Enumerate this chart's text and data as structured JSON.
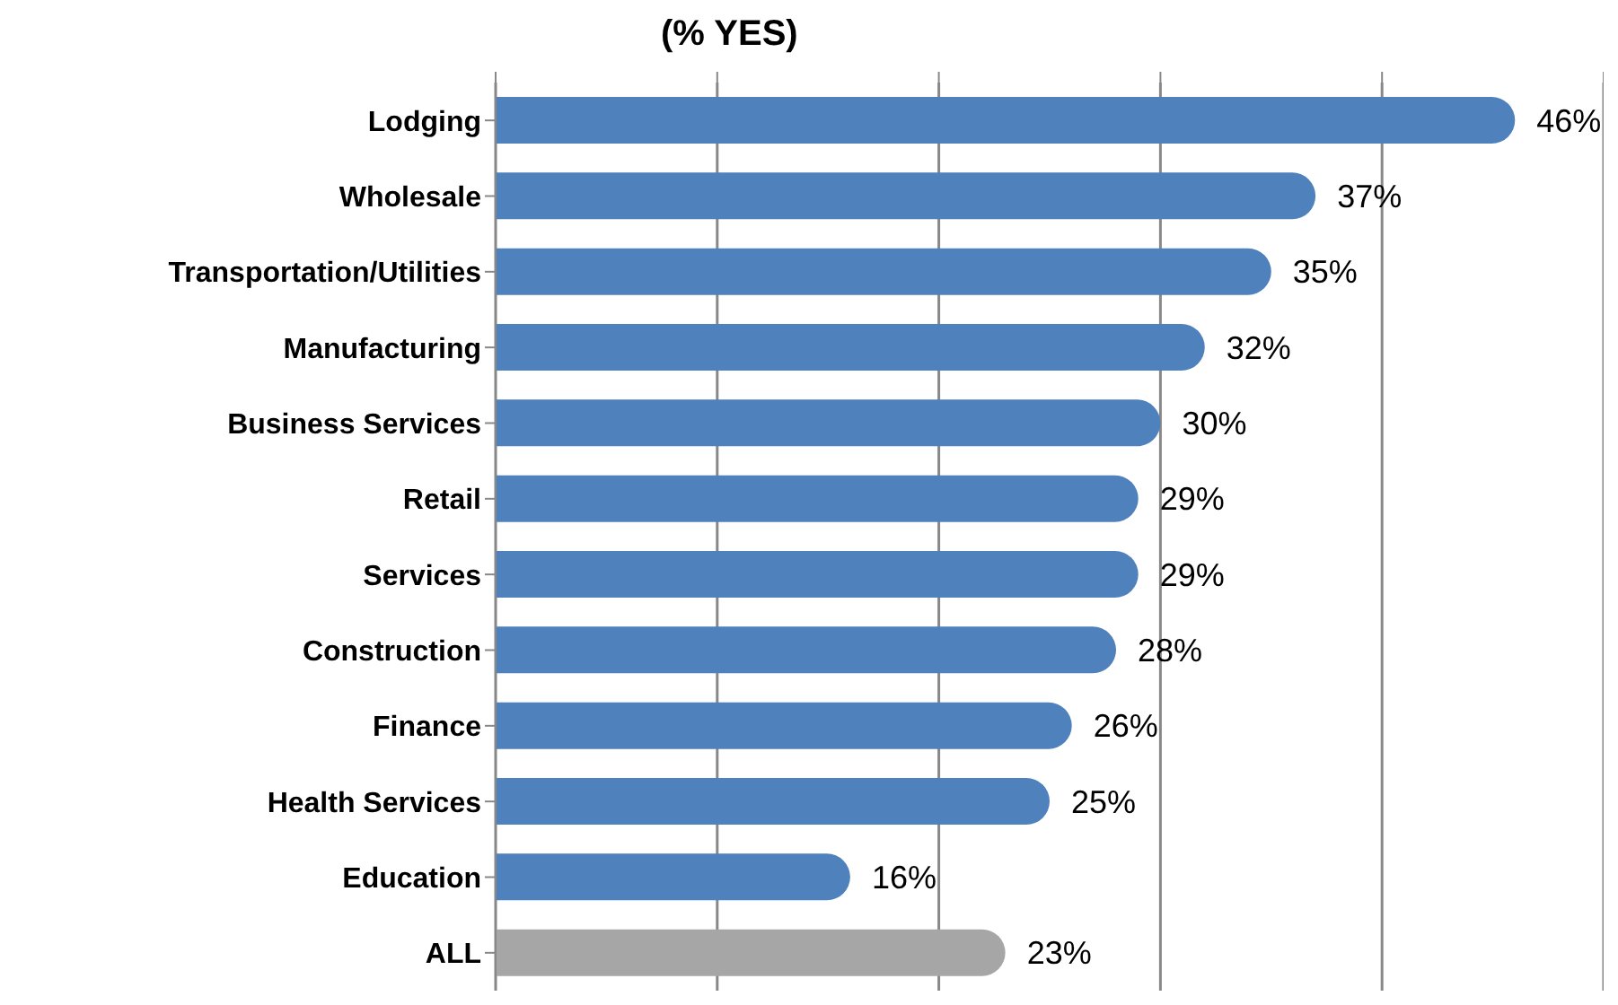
{
  "chart_data": {
    "type": "bar",
    "orientation": "horizontal",
    "title": "(% YES)",
    "categories": [
      "Lodging",
      "Wholesale",
      "Transportation/Utilities",
      "Manufacturing",
      "Business Services",
      "Retail",
      "Services",
      "Construction",
      "Finance",
      "Health Services",
      "Education",
      "ALL"
    ],
    "values": [
      46,
      37,
      35,
      32,
      30,
      29,
      29,
      28,
      26,
      25,
      16,
      23
    ],
    "value_labels": [
      "46%",
      "37%",
      "35%",
      "32%",
      "30%",
      "29%",
      "29%",
      "28%",
      "26%",
      "25%",
      "16%",
      "23%"
    ],
    "colors": [
      "#4f81bd",
      "#4f81bd",
      "#4f81bd",
      "#4f81bd",
      "#4f81bd",
      "#4f81bd",
      "#4f81bd",
      "#4f81bd",
      "#4f81bd",
      "#4f81bd",
      "#4f81bd",
      "#a6a6a6"
    ],
    "xlim": [
      0,
      50
    ],
    "xticks": [
      {
        "value": 0,
        "label": null
      },
      {
        "value": 10,
        "label": null
      },
      {
        "value": 20,
        "label": null
      },
      {
        "value": 30,
        "label": null
      },
      {
        "value": 40,
        "label": null
      },
      {
        "value": 50,
        "label": null
      }
    ],
    "grid": "x",
    "tick_labels": "y",
    "legend": false
  }
}
